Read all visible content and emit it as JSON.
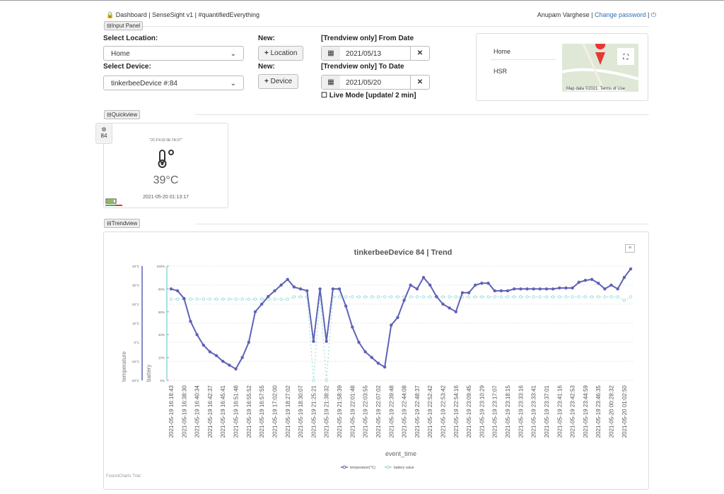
{
  "header": {
    "title": "Dashboard | SenseSight v1 | #quantifiedEverything",
    "user": "Anupam Varghese",
    "separator": "|",
    "change_password": "Change password"
  },
  "input_panel": {
    "toggle": "Input Panel",
    "location_label": "Select Location:",
    "location": "Home",
    "device_label": "Select Device:",
    "device": "tinkerbeeDevice #:84",
    "new_label": "New:",
    "new_location_button": "Location",
    "new_device_button": "Device",
    "from_label": "[Trendview only] From Date",
    "from_date": "2021/05/13",
    "to_label": "[Trendview only] To Date",
    "to_date": "2021/05/20",
    "live_mode": "Live Mode [update/ 2 min]"
  },
  "map": {
    "places": [
      "Home",
      "HSR"
    ],
    "attribution": "Map data ©2021",
    "terms": "Terms of Use"
  },
  "quickview": {
    "toggle": "Quickview",
    "badge": "84",
    "mac": "\"2C:F4:32:3E:7A:37\"",
    "temperature": "39°C",
    "timestamp": "2021-05-20 01:13:17"
  },
  "trendview": {
    "toggle": "Trendview"
  },
  "chart_data": {
    "type": "line",
    "title": "tinkerbeeDevice 84 | Trend",
    "x_label": "event_time",
    "y_label": "temperature",
    "y2_label": "battery",
    "credit": "FusionCharts Trial",
    "grid": true,
    "categories": [
      "2021-05-19 16:18:43",
      null,
      "2021-05-19 16:38:30",
      null,
      "2021-05-19 16:40:34",
      null,
      "2021-05-19 16:42:37",
      null,
      "2021-05-19 16:45:41",
      null,
      "2021-05-19 16:51:48",
      null,
      "2021-05-19 16:55:52",
      null,
      "2021-05-19 16:57:55",
      null,
      "2021-05-19 17:02:00",
      null,
      "2021-05-19 18:27:02",
      null,
      "2021-05-19 18:30:07",
      null,
      "2021-05-19 21:25:21",
      null,
      "2021-05-19 21:38:32",
      null,
      "2021-05-19 21:58:39",
      null,
      "2021-05-19 22:01:48",
      null,
      "2021-05-19 22:03:55",
      null,
      "2021-05-19 22:07:02",
      null,
      "2021-05-19 22:39:48",
      null,
      "2021-05-19 22:44:08",
      null,
      "2021-05-19 22:48:37",
      null,
      "2021-05-19 22:52:42",
      null,
      "2021-05-19 22:53:42",
      null,
      "2021-05-19 22:54:16",
      null,
      "2021-05-19 23:09:45",
      null,
      "2021-05-19 23:10:29",
      null,
      "2021-05-19 23:17:07",
      null,
      "2021-05-19 23:18:15",
      null,
      "2021-05-19 23:33:16",
      null,
      "2021-05-19 23:33:41",
      null,
      "2021-05-19 23:37:01",
      null,
      "2021-05-19 23:41:16",
      null,
      "2021-05-19 23:42:53",
      null,
      "2021-05-19 23:44:59",
      null,
      "2021-05-19 23:46:35",
      null,
      "2021-05-20 00:28:32",
      null,
      "2021-05-20 01:02:50",
      null
    ],
    "series": [
      {
        "name": "temperature(°C)",
        "color": "#5f62b5",
        "values": [
          28,
          27,
          23,
          11,
          4,
          -1.5,
          -5,
          -7,
          -10,
          -12,
          -14,
          -8,
          0,
          16,
          20,
          24,
          27,
          30,
          33,
          29,
          28,
          27,
          0.5,
          28,
          0.5,
          28,
          28,
          19,
          8,
          0,
          -5,
          -8,
          -11,
          -13,
          9,
          13,
          22,
          30,
          28,
          34,
          30,
          24,
          20,
          18,
          16,
          26,
          26,
          30,
          31,
          31,
          27,
          27,
          27,
          28,
          28,
          28,
          28,
          28,
          28,
          28,
          28.5,
          28.5,
          28.5,
          31.5,
          32.5,
          33,
          31,
          28,
          30,
          28,
          34,
          38.5
        ]
      },
      {
        "name": "battery value",
        "color": "#8fd8d8",
        "axis": "y2",
        "values": [
          71,
          71,
          71,
          71,
          71,
          71,
          71,
          71,
          71,
          71,
          71,
          71,
          71,
          71,
          71,
          71,
          71,
          71,
          71,
          73,
          73,
          73,
          0,
          73,
          0,
          73,
          73,
          73,
          73,
          73,
          73,
          73,
          73,
          73,
          73,
          73,
          73,
          73,
          73,
          73,
          73,
          73,
          73,
          73,
          73,
          73,
          73,
          73,
          73,
          73,
          73,
          73,
          73,
          73,
          73,
          73,
          73,
          73,
          73,
          73,
          73,
          73,
          73,
          73,
          73,
          73,
          73,
          73,
          73,
          73,
          70,
          73
        ]
      }
    ],
    "ylim": [
      -20,
      40
    ],
    "yticks": [
      {
        "value": -20,
        "label": "-20°C"
      },
      {
        "value": -10,
        "label": "-10°C"
      },
      {
        "value": 0,
        "label": "0°C"
      },
      {
        "value": 10,
        "label": "10°C"
      },
      {
        "value": 20,
        "label": "20°C"
      },
      {
        "value": 30,
        "label": "30°C"
      },
      {
        "value": 40,
        "label": "40°C"
      }
    ],
    "y2lim": [
      0,
      100
    ],
    "y2ticks": [
      {
        "value": 0,
        "label": "0%"
      },
      {
        "value": 20,
        "label": "20%"
      },
      {
        "value": 40,
        "label": "40%"
      },
      {
        "value": 60,
        "label": "60%"
      },
      {
        "value": 80,
        "label": "80%"
      },
      {
        "value": 100,
        "label": "100%"
      }
    ]
  }
}
